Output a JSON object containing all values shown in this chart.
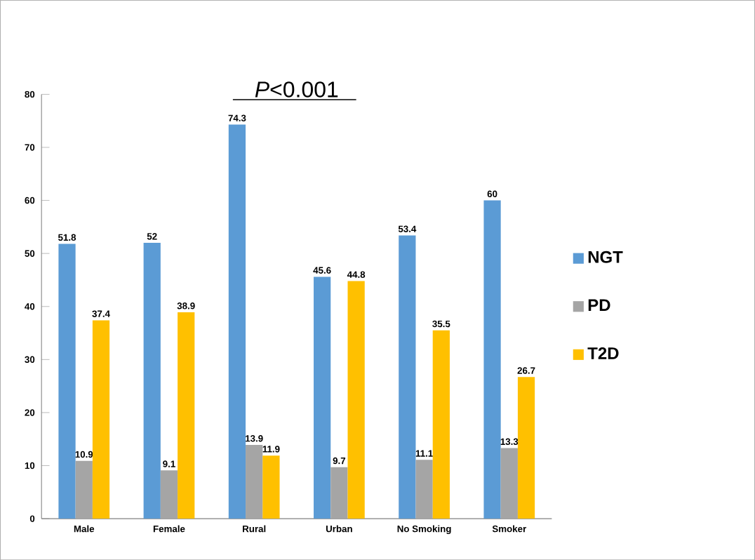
{
  "chart_data": {
    "type": "bar",
    "categories": [
      "Male",
      "Female",
      "Rural",
      "Urban",
      "No Smoking",
      "Smoker"
    ],
    "series": [
      {
        "name": "NGT",
        "color": "#5b9bd5",
        "values": [
          51.8,
          52,
          74.3,
          45.6,
          53.4,
          60
        ]
      },
      {
        "name": "PD",
        "color": "#a5a5a5",
        "values": [
          10.9,
          9.1,
          13.9,
          9.7,
          11.1,
          13.3
        ]
      },
      {
        "name": "T2D",
        "color": "#ffc000",
        "values": [
          37.4,
          38.9,
          11.9,
          44.8,
          35.5,
          26.7
        ]
      }
    ],
    "ylim": [
      0,
      80
    ],
    "yticks": [
      0,
      10,
      20,
      30,
      40,
      50,
      60,
      70,
      80
    ],
    "data_labels": true,
    "legend": "right",
    "grid": false,
    "annotations": [
      "*P*<0.001"
    ]
  }
}
